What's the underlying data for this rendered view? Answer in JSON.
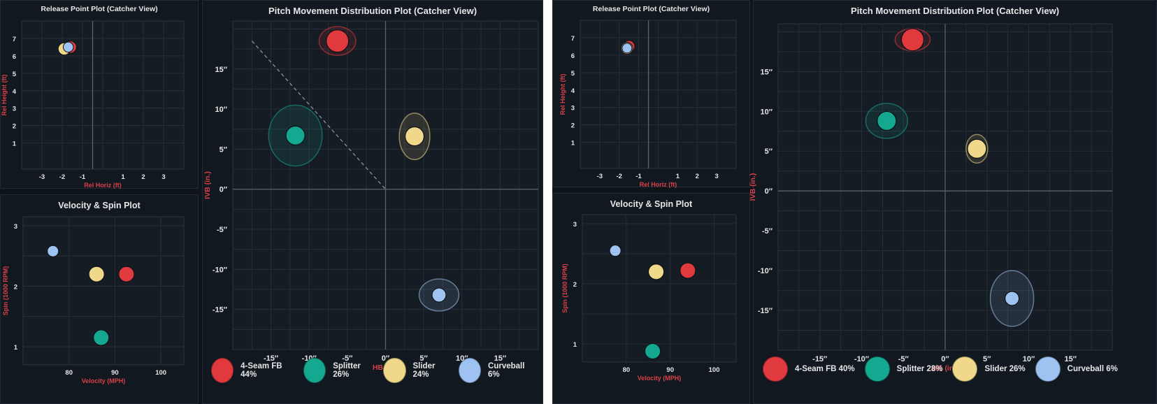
{
  "colors": {
    "4-Seam FB": "#e03a3e",
    "Splitter": "#14a890",
    "Slider": "#f0d88a",
    "Curveball": "#9ec3f2",
    "axis_label": "#d9414a",
    "tick": "#e6e6e6",
    "grid": "#262e38",
    "zero_line": "#5a626b"
  },
  "dashboards": [
    {
      "release_title": "Release Point Plot (Catcher View)",
      "velo_title": "Velocity & Spin Plot",
      "movement_title": "Pitch Movement Distribution Plot (Catcher View)",
      "legend": [
        {
          "pitch": "4-Seam FB",
          "label": "4-Seam FB 44%"
        },
        {
          "pitch": "Splitter",
          "label": "Splitter 26%"
        },
        {
          "pitch": "Slider",
          "label": "Slider 24%"
        },
        {
          "pitch": "Curveball",
          "label": "Curveball 6%"
        }
      ]
    },
    {
      "release_title": "Release Point Plot (Catcher View)",
      "velo_title": "Velocity & Spin Plot",
      "movement_title": "Pitch Movement Distribution Plot (Catcher View)",
      "legend": [
        {
          "pitch": "4-Seam FB",
          "label": "4-Seam FB 40%"
        },
        {
          "pitch": "Splitter",
          "label": "Splitter 28%"
        },
        {
          "pitch": "Slider",
          "label": "Slider 26%"
        },
        {
          "pitch": "Curveball",
          "label": "Curveball 6%"
        }
      ]
    }
  ],
  "chart_data": [
    {
      "type": "scatter",
      "title": "Release Point Plot (Catcher View)",
      "xlabel": "Rel Horiz (ft)",
      "ylabel": "Rel Height (ft)",
      "xlim": [
        -4,
        4
      ],
      "ylim": [
        -0.5,
        8
      ],
      "xticks": [
        -3,
        -2,
        -1,
        1,
        2,
        3
      ],
      "yticks": [
        1,
        2,
        3,
        4,
        5,
        6,
        7
      ],
      "zero_x": -0.5,
      "points": [
        {
          "pitch": "4-Seam FB",
          "x": -1.6,
          "y": 6.5,
          "r": 0.3
        },
        {
          "pitch": "Slider",
          "x": -1.9,
          "y": 6.4,
          "r": 0.3
        },
        {
          "pitch": "Curveball",
          "x": -1.7,
          "y": 6.5,
          "r": 0.25
        }
      ]
    },
    {
      "type": "scatter",
      "title": "Velocity & Spin Plot",
      "xlabel": "Velocity (MPH)",
      "ylabel": "Spin (1000 RPM)",
      "xlim": [
        70,
        105
      ],
      "ylim": [
        0.7,
        3.15
      ],
      "xticks": [
        80,
        90,
        100
      ],
      "yticks": [
        1,
        2,
        3
      ],
      "points": [
        {
          "pitch": "Curveball",
          "x": 76.5,
          "y": 2.58
        },
        {
          "pitch": "Slider",
          "x": 86,
          "y": 2.2
        },
        {
          "pitch": "4-Seam FB",
          "x": 92.5,
          "y": 2.2
        },
        {
          "pitch": "Splitter",
          "x": 87,
          "y": 1.15
        }
      ]
    },
    {
      "type": "scatter",
      "title": "Pitch Movement Distribution Plot (Catcher View)",
      "xlabel": "HB (in.)",
      "ylabel": "IVB (in.)",
      "xlim": [
        -20,
        20
      ],
      "ylim": [
        -20,
        21
      ],
      "xticks": [
        -15,
        -10,
        -5,
        0,
        5,
        10,
        15
      ],
      "yticks": [
        15,
        10,
        5,
        0,
        -5,
        -10,
        -15
      ],
      "diag_line": [
        [
          -17.5,
          18.5
        ],
        [
          0,
          0
        ]
      ],
      "points": [
        {
          "pitch": "4-Seam FB",
          "x": -6.3,
          "y": 18.5,
          "ex": 2.4,
          "ey": 1.8
        },
        {
          "pitch": "Splitter",
          "x": -11.8,
          "y": 6.7,
          "ex": 3.5,
          "ey": 3.8
        },
        {
          "pitch": "Slider",
          "x": 3.8,
          "y": 6.6,
          "ex": 2.0,
          "ey": 2.9
        },
        {
          "pitch": "Curveball",
          "x": 7.0,
          "y": -13.2,
          "ex": 2.6,
          "ey": 2.0
        }
      ]
    },
    {
      "type": "scatter",
      "title": "Release Point Plot (Catcher View)",
      "xlabel": "Rel Horiz (ft)",
      "ylabel": "Rel Height (ft)",
      "xlim": [
        -4,
        4
      ],
      "ylim": [
        -0.5,
        8
      ],
      "xticks": [
        -3,
        -2,
        -1,
        1,
        2,
        3
      ],
      "yticks": [
        1,
        2,
        3,
        4,
        5,
        6,
        7
      ],
      "zero_x": -0.5,
      "points": [
        {
          "pitch": "4-Seam FB",
          "x": -1.5,
          "y": 6.5,
          "r": 0.3
        },
        {
          "pitch": "Slider",
          "x": -1.6,
          "y": 6.4,
          "r": 0.3
        },
        {
          "pitch": "Curveball",
          "x": -1.6,
          "y": 6.4,
          "r": 0.25
        }
      ]
    },
    {
      "type": "scatter",
      "title": "Velocity & Spin Plot",
      "xlabel": "Velocity (MPH)",
      "ylabel": "Spin (1000 RPM)",
      "xlim": [
        70,
        105
      ],
      "ylim": [
        0.7,
        3.15
      ],
      "xticks": [
        80,
        90,
        100
      ],
      "yticks": [
        1,
        2,
        3
      ],
      "points": [
        {
          "pitch": "Curveball",
          "x": 77.5,
          "y": 2.55
        },
        {
          "pitch": "Slider",
          "x": 86.8,
          "y": 2.2
        },
        {
          "pitch": "4-Seam FB",
          "x": 94,
          "y": 2.22
        },
        {
          "pitch": "Splitter",
          "x": 86,
          "y": 0.88
        }
      ]
    },
    {
      "type": "scatter",
      "title": "Pitch Movement Distribution Plot (Catcher View)",
      "xlabel": "HB (in.)",
      "ylabel": "IVB (in.)",
      "xlim": [
        -20,
        20
      ],
      "ylim": [
        -20,
        21
      ],
      "xticks": [
        -15,
        -10,
        -5,
        0,
        5,
        10,
        15
      ],
      "yticks": [
        15,
        10,
        5,
        0,
        -5,
        -10,
        -15
      ],
      "points": [
        {
          "pitch": "4-Seam FB",
          "x": -3.9,
          "y": 19.0,
          "ex": 2.1,
          "ey": 1.4
        },
        {
          "pitch": "Splitter",
          "x": -7.0,
          "y": 8.8,
          "ex": 2.5,
          "ey": 2.2
        },
        {
          "pitch": "Slider",
          "x": 3.8,
          "y": 5.3,
          "ex": 1.3,
          "ey": 1.8
        },
        {
          "pitch": "Curveball",
          "x": 8.0,
          "y": -13.5,
          "ex": 2.6,
          "ey": 3.5
        }
      ]
    }
  ]
}
